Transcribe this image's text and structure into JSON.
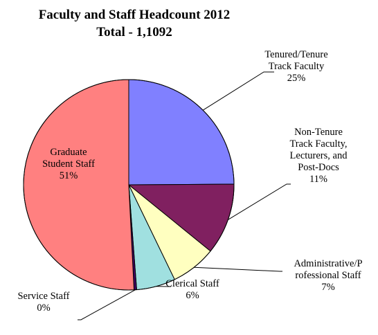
{
  "chart_data": {
    "type": "pie",
    "title": "Faculty and Staff Headcount 2012",
    "subtitle": "Total - 1,1092",
    "slices": [
      {
        "label_lines": [
          "Tenured/Tenure",
          "Track Faculty",
          "25%"
        ],
        "value": 25,
        "color": "#8080ff"
      },
      {
        "label_lines": [
          "Non-Tenure",
          "Track Faculty,",
          "Lecturers, and",
          "Post-Docs",
          "11%"
        ],
        "value": 11,
        "color": "#802060"
      },
      {
        "label_lines": [
          "Administrative/P",
          "rofessional Staff",
          "7%"
        ],
        "value": 7,
        "color": "#ffffc0"
      },
      {
        "label_lines": [
          "Clerical Staff",
          "6%"
        ],
        "value": 6,
        "color": "#a0e0e0"
      },
      {
        "label_lines": [
          "Service Staff",
          "0%"
        ],
        "value": 0.4,
        "color": "#400060"
      },
      {
        "label_lines": [
          "Graduate",
          "Student Staff",
          "51%"
        ],
        "value": 51,
        "color": "#ff8080"
      }
    ]
  }
}
